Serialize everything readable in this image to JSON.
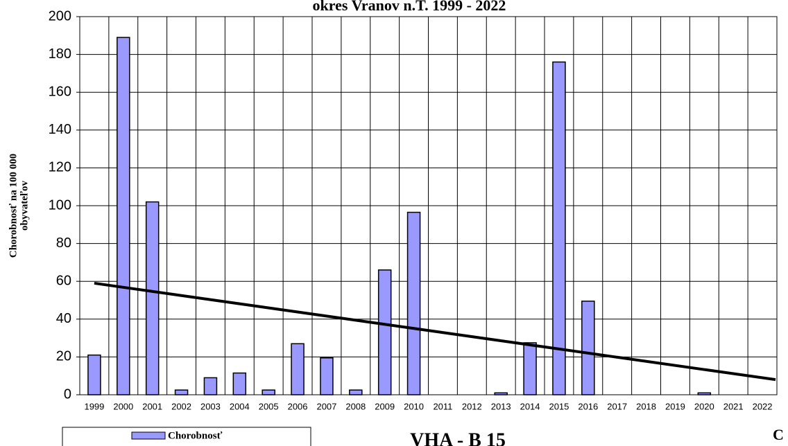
{
  "chart_data": {
    "type": "bar",
    "title": "okres Vranov n.T. 1999 - 2022",
    "y_label": [
      "Chorobnosť na 100 000",
      "obyvateľov"
    ],
    "categories": [
      "1999",
      "2000",
      "2001",
      "2002",
      "2003",
      "2004",
      "2005",
      "2006",
      "2007",
      "2008",
      "2009",
      "2010",
      "2011",
      "2012",
      "2013",
      "2014",
      "2015",
      "2016",
      "2017",
      "2018",
      "2019",
      "2020",
      "2021",
      "2022"
    ],
    "series": [
      {
        "name": "Chorobnosť",
        "color": "#9999ff",
        "values": [
          21,
          189,
          102,
          2.5,
          9,
          11.5,
          2.5,
          27,
          19.5,
          2.5,
          66,
          96.5,
          0,
          0,
          1,
          27.5,
          176,
          49.5,
          0,
          0,
          0,
          1,
          0,
          0
        ]
      }
    ],
    "trendline": [
      59,
      8
    ],
    "ylim": [
      0,
      200
    ],
    "yticks": [
      0,
      20,
      40,
      60,
      80,
      100,
      120,
      140,
      160,
      180,
      200
    ],
    "grid": true,
    "footer_code": "VHA - B 15",
    "footer_right": "C"
  }
}
